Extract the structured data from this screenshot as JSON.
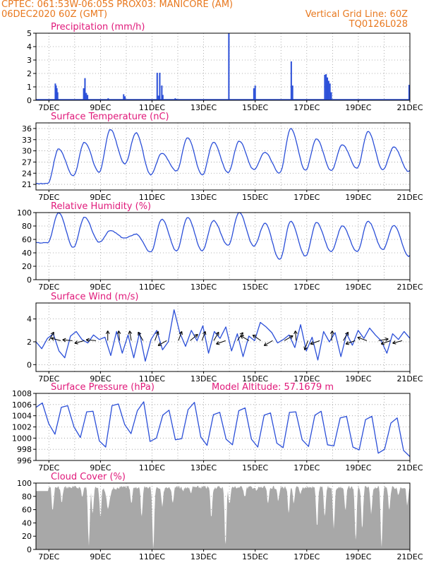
{
  "header": {
    "line1_left": "CPTEC:   061:53W-06:05S   PROX03: MANICORE (AM)",
    "line2_left": "06DEC2020 60Z (GMT)",
    "line2_right": "Vertical Grid Line: 60Z",
    "line3_right": "TQ0126L028"
  },
  "colors": {
    "header": "#e8781e",
    "title": "#e0197a",
    "series": "#2b4fd8",
    "cloud": "#a8a8a8",
    "grid": "#9a9a9a"
  },
  "x_axis": {
    "labels": [
      "7DEC",
      "9DEC",
      "11DEC",
      "13DEC",
      "15DEC",
      "17DEC",
      "19DEC",
      "21DEC"
    ]
  },
  "chart_data": [
    {
      "type": "bar",
      "title": "Precipitation (mm/h)",
      "ylim": [
        0,
        5
      ],
      "yticks": [
        0,
        1,
        2,
        3,
        4,
        5
      ],
      "bars": [
        {
          "t": 0.25,
          "v": 1.25
        },
        {
          "t": 0.28,
          "v": 1.1
        },
        {
          "t": 0.31,
          "v": 0.9
        },
        {
          "t": 0.34,
          "v": 0.6
        },
        {
          "t": 1.35,
          "v": 0.9
        },
        {
          "t": 1.4,
          "v": 1.65
        },
        {
          "t": 1.45,
          "v": 0.55
        },
        {
          "t": 1.5,
          "v": 0.4
        },
        {
          "t": 2.3,
          "v": 0.15
        },
        {
          "t": 2.9,
          "v": 0.45
        },
        {
          "t": 2.95,
          "v": 0.3
        },
        {
          "t": 4.2,
          "v": 2.05
        },
        {
          "t": 4.25,
          "v": 0.35
        },
        {
          "t": 4.3,
          "v": 2.05
        },
        {
          "t": 4.38,
          "v": 1.1
        },
        {
          "t": 4.42,
          "v": 0.4
        },
        {
          "t": 4.9,
          "v": 0.15
        },
        {
          "t": 4.95,
          "v": 0.1
        },
        {
          "t": 6.98,
          "v": 5.0
        },
        {
          "t": 7.95,
          "v": 0.9
        },
        {
          "t": 8.0,
          "v": 1.1
        },
        {
          "t": 9.4,
          "v": 2.9
        },
        {
          "t": 9.45,
          "v": 1.1
        },
        {
          "t": 10.7,
          "v": 1.9
        },
        {
          "t": 10.75,
          "v": 1.95
        },
        {
          "t": 10.8,
          "v": 1.7
        },
        {
          "t": 10.85,
          "v": 1.45
        },
        {
          "t": 10.9,
          "v": 1.25
        },
        {
          "t": 10.95,
          "v": 0.6
        },
        {
          "t": 13.97,
          "v": 1.15
        }
      ]
    },
    {
      "type": "line",
      "title": "Surface Temperature (nC)",
      "ylim": [
        19.5,
        37.5
      ],
      "yticks": [
        21,
        24,
        27,
        30,
        33,
        36
      ],
      "peaks": [
        30.5,
        32.3,
        35.7,
        34.8,
        29.3,
        33.5,
        32.3,
        32.6,
        29.6,
        36.0,
        33.2,
        31.7,
        35.2,
        31.0,
        34.3
      ],
      "troughs": [
        21.2,
        23.3,
        24.3,
        26.5,
        23.6,
        24.6,
        23.5,
        24.2,
        25.0,
        24.0,
        24.8,
        24.7,
        25.3,
        25.0,
        24.5
      ]
    },
    {
      "type": "line",
      "title": "Relative Humidity (%)",
      "ylim": [
        0,
        100
      ],
      "yticks": [
        0,
        20,
        40,
        60,
        80,
        100
      ],
      "peaks": [
        100,
        93,
        73,
        68,
        90,
        93,
        88,
        100,
        84,
        87,
        85,
        80,
        87,
        81,
        90
      ],
      "troughs": [
        55,
        48,
        56,
        62,
        41,
        43,
        43,
        51,
        50,
        30,
        35,
        42,
        42,
        45,
        35
      ]
    },
    {
      "type": "line",
      "title": "Surface Wind (m/s)",
      "ylim": [
        -0.6,
        5.4
      ],
      "yticks": [
        0,
        2,
        4
      ],
      "series": [
        2.0,
        1.4,
        2.3,
        2.7,
        1.2,
        0.6,
        2.5,
        2.9,
        2.2,
        1.9,
        2.6,
        2.2,
        2.4,
        0.8,
        2.9,
        1.0,
        2.6,
        0.6,
        2.8,
        0.3,
        2.2,
        3.0,
        1.3,
        2.0,
        4.8,
        2.8,
        1.6,
        3.0,
        2.1,
        3.4,
        1.0,
        2.9,
        2.3,
        3.3,
        1.2,
        2.7,
        0.7,
        2.5,
        2.1,
        3.7,
        3.3,
        2.8,
        1.9,
        2.2,
        2.6,
        1.5,
        3.5,
        1.2,
        2.4,
        0.4,
        2.9,
        2.0,
        2.8,
        0.7,
        2.7,
        1.7,
        3.0,
        2.3,
        3.2,
        2.6,
        2.1,
        1.0,
        2.7,
        2.2,
        2.9,
        2.3
      ],
      "arrows_angle_deg": [
        60,
        165,
        175,
        195,
        175,
        90,
        95,
        100,
        120,
        70,
        210,
        70,
        40,
        70,
        60,
        200,
        55,
        150,
        145,
        210,
        30,
        95,
        250,
        200,
        85,
        60,
        200,
        160,
        10,
        200,
        195
      ]
    },
    {
      "type": "line",
      "title": "Surface Pressure (hPa)",
      "annotation": "Model Altitude: 57.1679 m",
      "ylim": [
        996,
        1008
      ],
      "yticks": [
        996,
        998,
        1000,
        1002,
        1004,
        1006,
        1008
      ],
      "series": [
        1005.5,
        1006.3,
        1002.6,
        1000.7,
        1005.5,
        1005.8,
        1002.0,
        1000.1,
        1004.7,
        1004.8,
        999.5,
        998.4,
        1005.8,
        1006.1,
        1002.4,
        1000.8,
        1004.9,
        1006.5,
        999.4,
        1000.0,
        1004.1,
        1005.0,
        999.7,
        999.9,
        1005.1,
        1006.4,
        1000.2,
        998.7,
        1004.2,
        1004.6,
        999.8,
        998.8,
        1004.9,
        1005.4,
        999.8,
        998.4,
        1004.1,
        1004.5,
        999.1,
        998.3,
        1004.6,
        1004.7,
        999.7,
        998.5,
        1004.1,
        1004.8,
        998.8,
        998.6,
        1003.6,
        1003.9,
        998.4,
        997.9,
        1003.3,
        1003.9,
        997.3,
        998.0,
        1002.7,
        1003.6,
        997.8,
        996.7
      ]
    },
    {
      "type": "area",
      "title": "Cloud Cover (%)",
      "ylim": [
        0,
        100
      ],
      "yticks": [
        0,
        20,
        40,
        60,
        80,
        100
      ],
      "dips": [
        {
          "t": 0.15,
          "v": 60
        },
        {
          "t": 0.5,
          "v": 72
        },
        {
          "t": 1.3,
          "v": 82
        },
        {
          "t": 1.55,
          "v": 10
        },
        {
          "t": 1.7,
          "v": 55
        },
        {
          "t": 2.0,
          "v": 50
        },
        {
          "t": 2.3,
          "v": 65
        },
        {
          "t": 2.6,
          "v": 90
        },
        {
          "t": 3.2,
          "v": 70
        },
        {
          "t": 3.6,
          "v": 50
        },
        {
          "t": 4.05,
          "v": 3
        },
        {
          "t": 4.4,
          "v": 68
        },
        {
          "t": 4.8,
          "v": 72
        },
        {
          "t": 5.2,
          "v": 90
        },
        {
          "t": 5.5,
          "v": 88
        },
        {
          "t": 6.3,
          "v": 50
        },
        {
          "t": 6.85,
          "v": 8
        },
        {
          "t": 7.0,
          "v": 70
        },
        {
          "t": 7.6,
          "v": 82
        },
        {
          "t": 8.05,
          "v": 90
        },
        {
          "t": 8.5,
          "v": 70
        },
        {
          "t": 8.9,
          "v": 75
        },
        {
          "t": 9.3,
          "v": 55
        },
        {
          "t": 9.5,
          "v": 72
        },
        {
          "t": 9.75,
          "v": 85
        },
        {
          "t": 10.4,
          "v": 35
        },
        {
          "t": 10.7,
          "v": 50
        },
        {
          "t": 11.05,
          "v": 35
        },
        {
          "t": 11.5,
          "v": 60
        },
        {
          "t": 11.9,
          "v": 15
        },
        {
          "t": 12.15,
          "v": 30
        },
        {
          "t": 12.5,
          "v": 55
        },
        {
          "t": 12.9,
          "v": 5
        },
        {
          "t": 13.2,
          "v": 60
        },
        {
          "t": 13.55,
          "v": 85
        },
        {
          "t": 13.9,
          "v": 70
        }
      ]
    }
  ]
}
